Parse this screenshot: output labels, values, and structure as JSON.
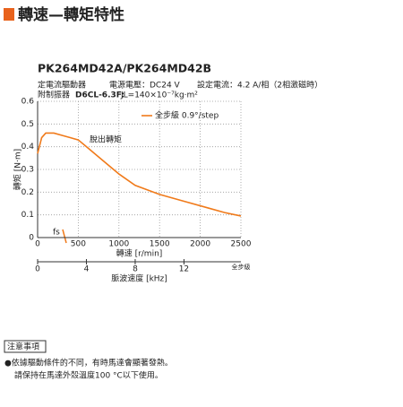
{
  "header": {
    "title": "轉速—轉矩特性"
  },
  "model": "PK264MD42A/PK264MD42B",
  "conditions": {
    "driver": "定電流驅動器",
    "voltage": "電源電壓：DC24 V",
    "current": "設定電流：4.2 A/相（2相激磁時）"
  },
  "damper": {
    "label": "附制振器",
    "model": "D6CL-6.3F:",
    "inertia": "JL=140×10⁻⁷kg·m²"
  },
  "chart_data": {
    "type": "line",
    "x": [
      0,
      50,
      100,
      200,
      300,
      400,
      500,
      600,
      700,
      800,
      1000,
      1200,
      1500,
      1800,
      2100,
      2300,
      2500
    ],
    "series": [
      {
        "name": "全步級 0.9°/step",
        "color": "#f07a1a",
        "values": [
          0.37,
          0.44,
          0.46,
          0.46,
          0.45,
          0.44,
          0.43,
          0.4,
          0.37,
          0.34,
          0.28,
          0.23,
          0.19,
          0.16,
          0.13,
          0.11,
          0.095
        ]
      }
    ],
    "xlim": [
      0,
      2500
    ],
    "xticks": [
      0,
      500,
      1000,
      1500,
      2000,
      2500
    ],
    "ylim": [
      0,
      0.6
    ],
    "yticks": [
      0,
      0.1,
      0.2,
      0.3,
      0.4,
      0.5,
      0.6
    ],
    "xlabel": "轉速 [r/min]",
    "ylabel": "轉矩 [N·m]",
    "grid": true,
    "annotations": [
      "脫出轉矩",
      "fs"
    ],
    "x2lim": [
      0,
      16.667
    ],
    "x2ticks": [
      0,
      4,
      8,
      12
    ],
    "x2label": "脈波速度 [kHz]",
    "x2end": "全步級"
  },
  "notes": {
    "title": "注意事項",
    "lines": [
      "●依據驅動條件的不同，有時馬達會顯著發熱。",
      "請保持在馬達外殼溫度100 °C以下使用。"
    ]
  }
}
